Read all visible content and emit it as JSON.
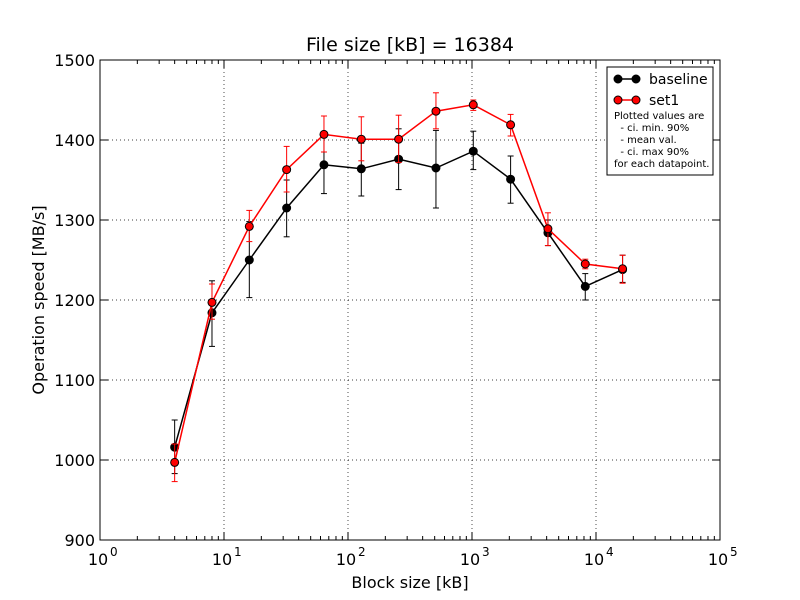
{
  "chart_data": {
    "type": "line",
    "title": "File size [kB] = 16384",
    "xlabel": "Block size [kB]",
    "ylabel": "Operation speed [MB/s]",
    "x_scale": "log10",
    "xlim": [
      1,
      100000
    ],
    "ylim": [
      900,
      1500
    ],
    "x_ticks": [
      {
        "base": "10",
        "exp": "0"
      },
      {
        "base": "10",
        "exp": "1"
      },
      {
        "base": "10",
        "exp": "2"
      },
      {
        "base": "10",
        "exp": "3"
      },
      {
        "base": "10",
        "exp": "4"
      },
      {
        "base": "10",
        "exp": "5"
      }
    ],
    "y_ticks": [
      "900",
      "1000",
      "1100",
      "1200",
      "1300",
      "1400",
      "1500"
    ],
    "grid": true,
    "legend_position": "top-right",
    "x": [
      4,
      8,
      16,
      32,
      64,
      128,
      256,
      512,
      1024,
      2048,
      4096,
      8192,
      16384
    ],
    "series": [
      {
        "name": "baseline",
        "color": "#000000",
        "values": [
          1016,
          1184,
          1250,
          1315,
          1369,
          1364,
          1376,
          1365,
          1386,
          1351,
          1284,
          1217,
          1238
        ],
        "ci_low": [
          983,
          1142,
          1203,
          1279,
          1333,
          1330,
          1338,
          1315,
          1363,
          1321,
          1268,
          1200,
          1222
        ],
        "ci_high": [
          1050,
          1224,
          1298,
          1350,
          1405,
          1396,
          1414,
          1412,
          1411,
          1380,
          1300,
          1233,
          1256
        ]
      },
      {
        "name": "set1",
        "color": "#ff0000",
        "values": [
          997,
          1197,
          1292,
          1363,
          1407,
          1401,
          1401,
          1436,
          1444,
          1419,
          1289,
          1245,
          1239
        ],
        "ci_low": [
          973,
          1176,
          1273,
          1335,
          1385,
          1374,
          1372,
          1414,
          1437,
          1405,
          1268,
          1239,
          1221
        ],
        "ci_high": [
          1020,
          1220,
          1312,
          1392,
          1430,
          1429,
          1431,
          1459,
          1450,
          1432,
          1309,
          1251,
          1256
        ]
      }
    ],
    "legend_note": [
      "Plotted values are",
      "  - ci. min. 90%",
      "  - mean val.",
      "  - ci. max 90%",
      "for each datapoint."
    ]
  }
}
